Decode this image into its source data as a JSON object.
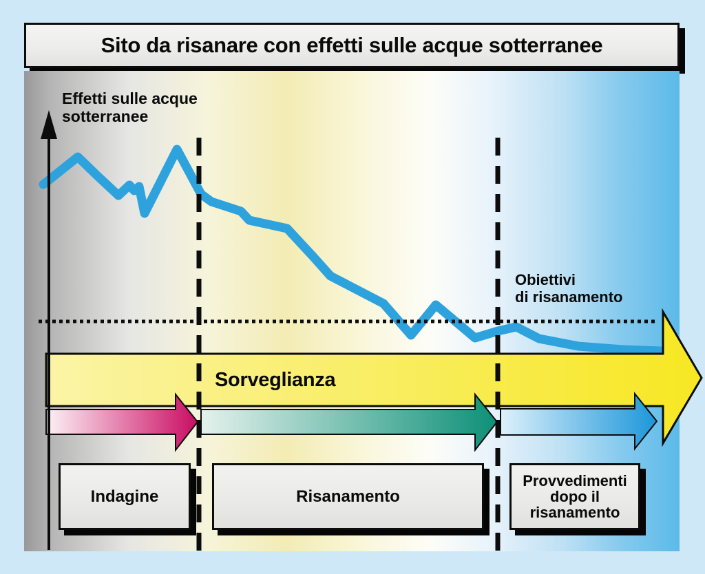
{
  "title": {
    "text": "Sito da risanare con effetti sulle acque sotterranee"
  },
  "axis": {
    "label_line1": "Effetti sulle acque",
    "label_line2": "sotterranee"
  },
  "target": {
    "label_line1": "Obiettivi",
    "label_line2": "di risanamento"
  },
  "surveillance": {
    "label": "Sorveglianza"
  },
  "phases": [
    {
      "label": "Indagine"
    },
    {
      "label": "Risanamento"
    },
    {
      "label": "Provvedimenti dopo il risanamento",
      "lines": [
        "Provvedimenti",
        "dopo il",
        "risanamento"
      ]
    }
  ],
  "colors": {
    "page_background": "#cfe8f7",
    "curve_blue": "#2ea2dd",
    "outline_black": "#0c0c0c",
    "yellow_arrow_start": "#fbf4a6",
    "yellow_arrow_end": "#f7e722",
    "pink_arrow_start": "#fdf1f5",
    "pink_arrow_end": "#ca0d63",
    "teal_arrow_start": "#e4f1ec",
    "teal_arrow_end": "#0e9078",
    "blue_arrow_start": "#ddf1fb",
    "blue_arrow_end": "#1d96da"
  },
  "curve": {
    "points": [
      [
        63,
        268
      ],
      [
        113,
        228
      ],
      [
        142,
        256
      ],
      [
        172,
        284
      ],
      [
        188,
        269
      ],
      [
        195,
        277
      ],
      [
        202,
        271
      ],
      [
        210,
        310
      ],
      [
        257,
        217
      ],
      [
        292,
        282
      ],
      [
        307,
        293
      ],
      [
        350,
        307
      ],
      [
        362,
        320
      ],
      [
        417,
        332
      ],
      [
        455,
        373
      ],
      [
        480,
        401
      ],
      [
        557,
        441
      ],
      [
        597,
        487
      ],
      [
        633,
        443
      ],
      [
        690,
        491
      ],
      [
        723,
        481
      ],
      [
        750,
        475
      ],
      [
        783,
        492
      ],
      [
        840,
        503
      ],
      [
        905,
        508
      ],
      [
        960,
        510
      ]
    ]
  },
  "chart_data": {
    "type": "line",
    "title": "Sito da risanare con effetti sulle acque sotterranee",
    "ylabel": "Effetti sulle acque sotterranee",
    "x_axis": "time (qualitative, no tick labels)",
    "y_axis": "effect level (qualitative, no tick labels)",
    "series": [
      {
        "name": "Effetti sulle acque sotterranee",
        "shape": "jagged declining curve, high and fluctuating during Indagine, steadily declining during Risanamento, flattening just below the target line during Provvedimenti dopo il risanamento"
      }
    ],
    "threshold": {
      "label": "Obiettivi di risanamento",
      "style": "dotted horizontal line"
    },
    "phase_dividers": {
      "style": "vertical dashed lines",
      "count": 2
    },
    "phases": [
      "Indagine",
      "Risanamento",
      "Provvedimenti dopo il risanamento"
    ],
    "band": {
      "label": "Sorveglianza",
      "style": "large yellow right arrow spanning all phases"
    },
    "grid": false,
    "legend": false
  }
}
